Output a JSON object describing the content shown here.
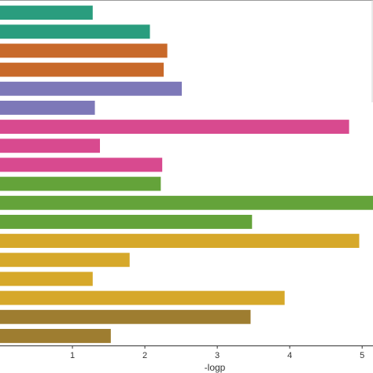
{
  "chart_data": {
    "type": "bar",
    "orientation": "horizontal",
    "xlabel": "-logp",
    "ylabel": "",
    "xlim": [
      0.0,
      5.15
    ],
    "xticks": [
      1,
      2,
      3,
      4,
      5
    ],
    "grid": false,
    "legend": "none",
    "categories": [
      "",
      "",
      "",
      "",
      "",
      "",
      "",
      "",
      "",
      "",
      "",
      "",
      "",
      "",
      "",
      "",
      "",
      ""
    ],
    "values": [
      1.28,
      2.07,
      2.31,
      2.26,
      2.51,
      1.31,
      4.82,
      1.38,
      2.24,
      2.22,
      5.15,
      3.48,
      4.96,
      1.79,
      1.28,
      3.93,
      3.46,
      1.53
    ],
    "colors": [
      "#2a9d7e",
      "#2a9d7e",
      "#c8692a",
      "#c8692a",
      "#7d78b8",
      "#7d78b8",
      "#d84a8f",
      "#d84a8f",
      "#d84a8f",
      "#64a33a",
      "#64a33a",
      "#64a33a",
      "#d6a82a",
      "#d6a82a",
      "#d6a82a",
      "#d6a82a",
      "#9e7d30",
      "#9e7d30"
    ]
  }
}
